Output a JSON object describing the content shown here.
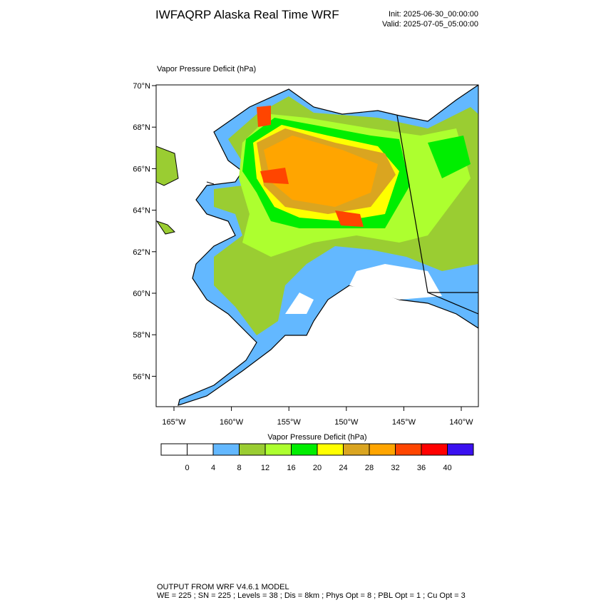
{
  "header": {
    "title": "IWFAQRP Alaska Real Time WRF",
    "init": "Init: 2025-06-30_00:00:00",
    "valid": "Valid: 2025-07-05_05:00:00"
  },
  "map": {
    "subtitle": "Vapor Pressure Deficit   (hPa)",
    "lat_labels": [
      "70°N",
      "68°N",
      "66°N",
      "64°N",
      "62°N",
      "60°N",
      "58°N",
      "56°N"
    ],
    "lon_labels": [
      "165°W",
      "160°W",
      "155°W",
      "150°W",
      "145°W",
      "140°W"
    ]
  },
  "colorbar": {
    "title": "Vapor Pressure Deficit  (hPa)",
    "colors": [
      "#ffffff",
      "#ffffff",
      "#63b8ff",
      "#9acd32",
      "#adff2f",
      "#00ee00",
      "#ffff00",
      "#daa520",
      "#ffa500",
      "#ff4500",
      "#ff0000",
      "#3a10f0"
    ],
    "labels": [
      0,
      4,
      8,
      12,
      16,
      20,
      24,
      28,
      32,
      36,
      40
    ]
  },
  "footer": {
    "lines": [
      "OUTPUT FROM WRF V4.6.1 MODEL",
      "WE = 225 ; SN = 225 ; Levels = 38 ; Dis = 8km ; Phys Opt = 8 ; PBL Opt = 1 ; Cu Opt = 3"
    ]
  }
}
